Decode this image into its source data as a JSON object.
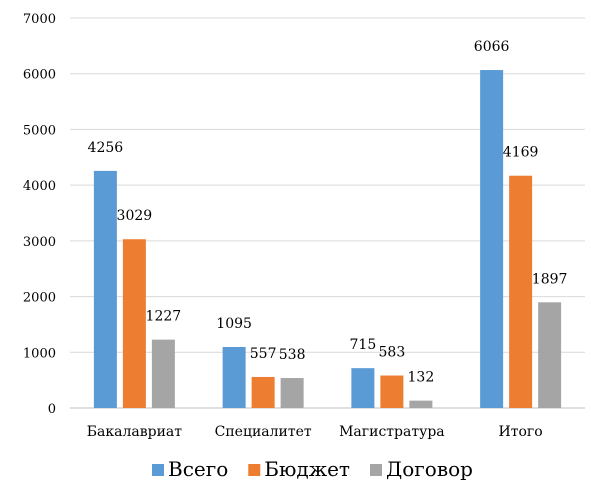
{
  "chart_data": {
    "type": "bar",
    "categories": [
      "Бакалавриат",
      "Специалитет",
      "Магистратура",
      "Итого"
    ],
    "series": [
      {
        "name": "Всего",
        "color": "#5b9bd5",
        "values": [
          4256,
          1095,
          715,
          6066
        ]
      },
      {
        "name": "Бюджет",
        "color": "#ed7d31",
        "values": [
          3029,
          557,
          583,
          4169
        ]
      },
      {
        "name": "Договор",
        "color": "#a5a5a5",
        "values": [
          1227,
          538,
          132,
          1897
        ]
      }
    ],
    "ylim": [
      0,
      7000
    ],
    "yticks": [
      0,
      1000,
      2000,
      3000,
      4000,
      5000,
      6000,
      7000
    ],
    "grid": true,
    "legend": "bottom",
    "title": "",
    "xlabel": "",
    "ylabel": ""
  }
}
